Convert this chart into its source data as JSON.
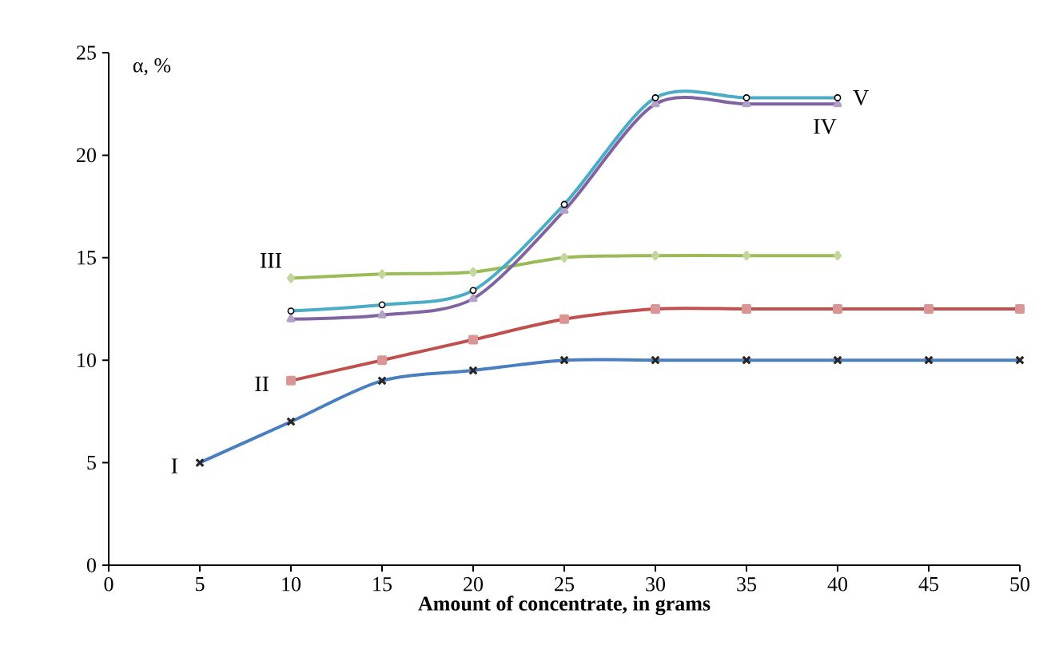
{
  "chart_data": {
    "type": "line",
    "xlabel": "Amount of concentrate, in grams",
    "ylabel": "α, %",
    "xlim": [
      0,
      50
    ],
    "xticks": [
      0,
      5,
      10,
      15,
      20,
      25,
      30,
      35,
      40,
      45,
      50
    ],
    "ylim": [
      0,
      25
    ],
    "yticks": [
      0,
      5,
      10,
      15,
      20,
      25
    ],
    "grid": false,
    "legend": false,
    "line_style": "solid",
    "series": [
      {
        "name": "I",
        "color": "#4a7ebf",
        "marker": "cross",
        "x": [
          5,
          10,
          15,
          20,
          25,
          30,
          35,
          40,
          45,
          50
        ],
        "values": [
          5,
          7,
          9,
          9.5,
          10,
          10,
          10,
          10,
          10,
          10
        ]
      },
      {
        "name": "II",
        "color": "#c0504d",
        "marker": "square",
        "x": [
          10,
          15,
          20,
          25,
          30,
          35,
          40,
          45,
          50
        ],
        "values": [
          9,
          10,
          11,
          12,
          12.5,
          12.5,
          12.5,
          12.5,
          12.5
        ]
      },
      {
        "name": "III",
        "color": "#9bbb59",
        "marker": "diamond",
        "x": [
          10,
          15,
          20,
          25,
          30,
          35,
          40
        ],
        "values": [
          14,
          14.2,
          14.3,
          15,
          15.1,
          15.1,
          15.1
        ]
      },
      {
        "name": "IV",
        "color": "#8064a2",
        "marker": "triangle",
        "x": [
          10,
          15,
          20,
          25,
          30,
          35,
          40
        ],
        "values": [
          12,
          12.2,
          13,
          17.3,
          22.5,
          22.5,
          22.5
        ]
      },
      {
        "name": "V",
        "color": "#4bacc6",
        "marker": "circle",
        "x": [
          10,
          15,
          20,
          25,
          30,
          35,
          40
        ],
        "values": [
          12.4,
          12.7,
          13.4,
          17.6,
          22.8,
          22.8,
          22.8
        ]
      }
    ]
  }
}
